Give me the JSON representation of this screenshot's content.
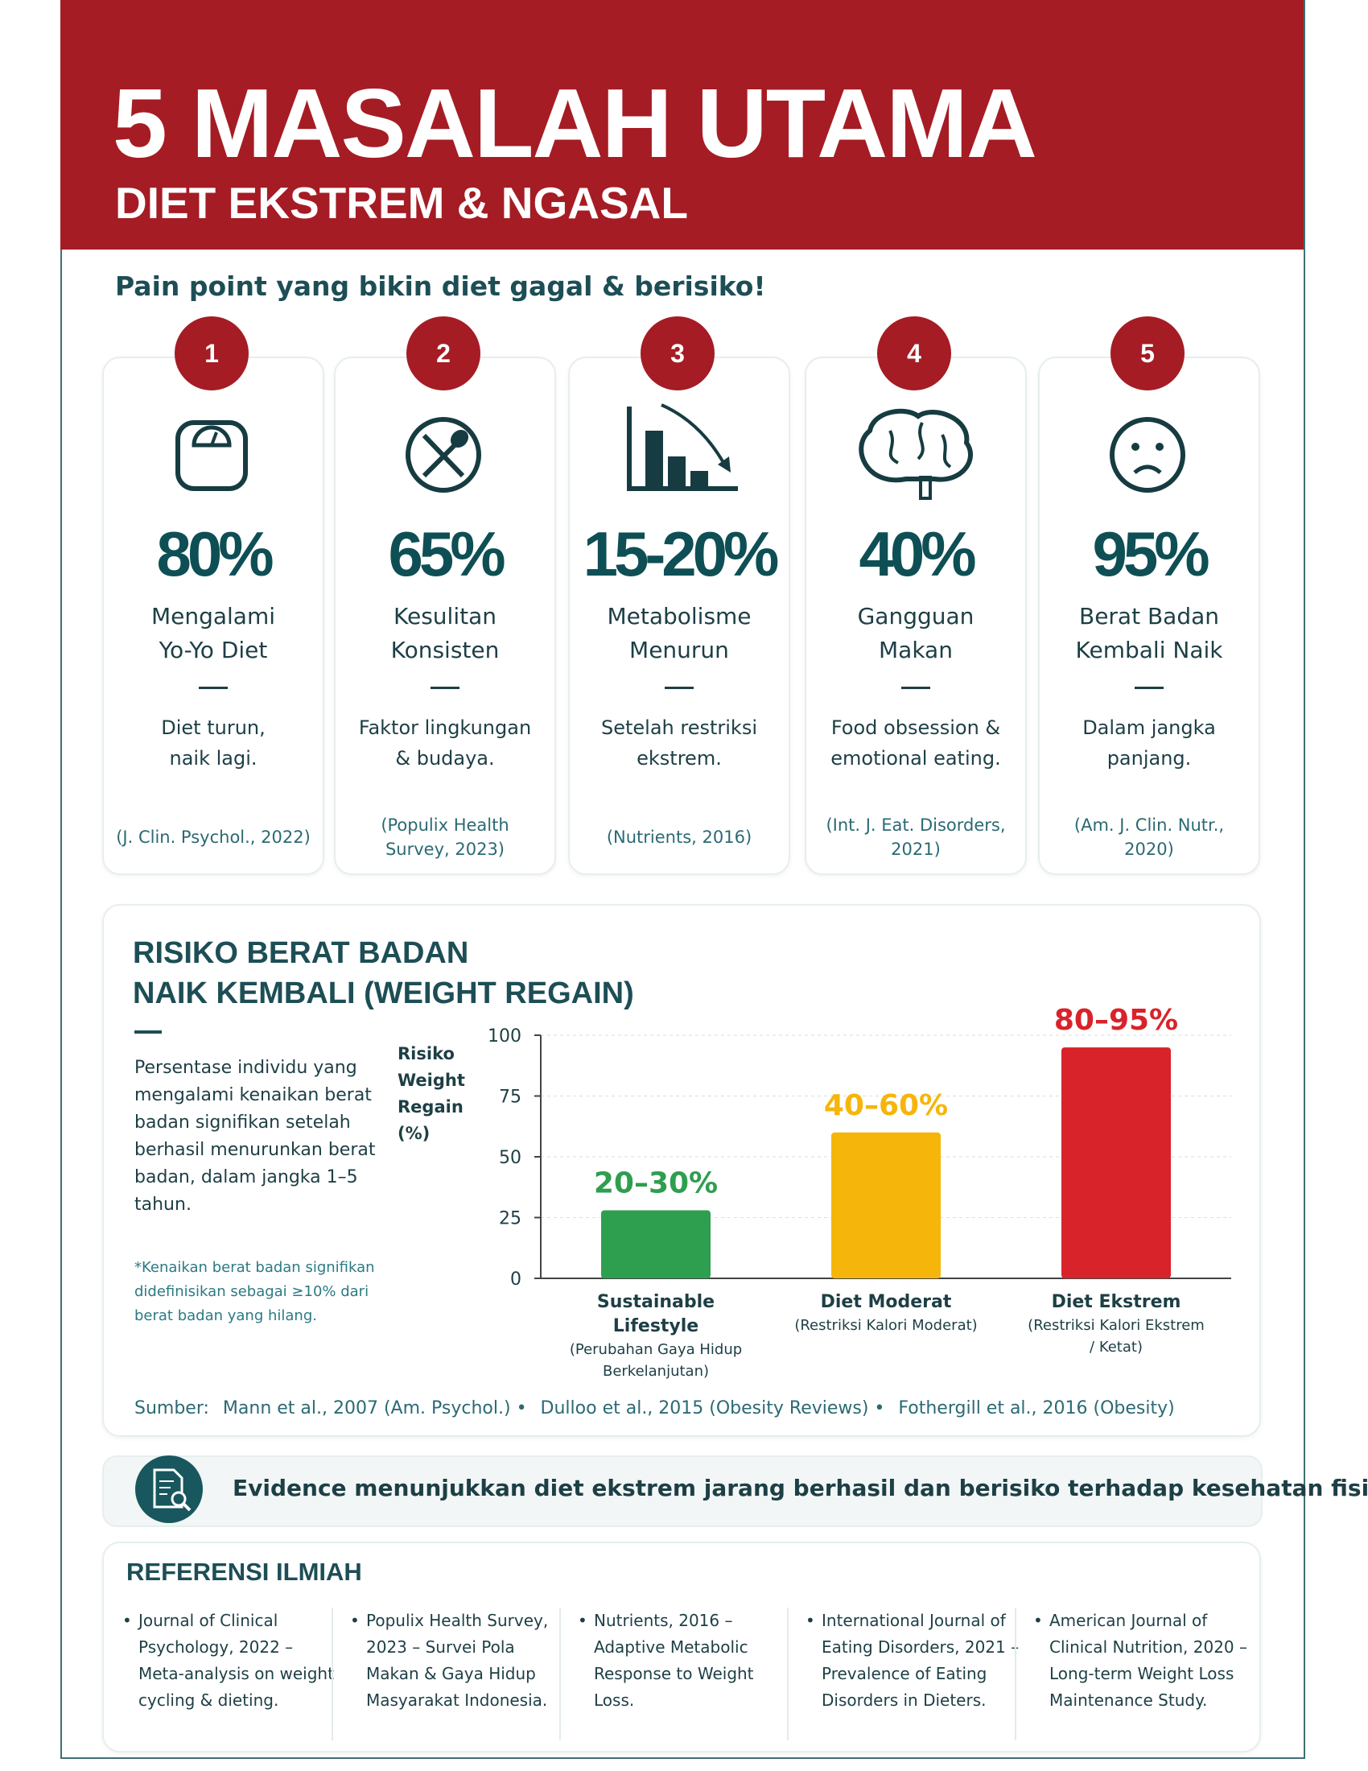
{
  "header": {
    "title": "5 MASALAH UTAMA",
    "subtitle": "DIET EKSTREM & NGASAL"
  },
  "tagline": "Pain point yang bikin diet gagal & berisiko!",
  "cards": [
    {
      "number": "1",
      "stat": "80%",
      "label": [
        "Mengalami",
        "Yo-Yo Diet"
      ],
      "desc": [
        "Diet turun,",
        "naik lagi."
      ],
      "source": [
        "(J. Clin. Psychol., 2022)"
      ]
    },
    {
      "number": "2",
      "stat": "65%",
      "label": [
        "Kesulitan",
        "Konsisten"
      ],
      "desc": [
        "Faktor lingkungan",
        "& budaya."
      ],
      "source": [
        "(Populix Health",
        "Survey, 2023)"
      ]
    },
    {
      "number": "3",
      "stat": "15-20%",
      "label": [
        "Metabolisme",
        "Menurun"
      ],
      "desc": [
        "Setelah restriksi",
        "ekstrem."
      ],
      "source": [
        "(Nutrients, 2016)"
      ]
    },
    {
      "number": "4",
      "stat": "40%",
      "label": [
        "Gangguan",
        "Makan"
      ],
      "desc": [
        "Food obsession &",
        "emotional eating."
      ],
      "source": [
        "(Int. J. Eat. Disorders,",
        "2021)"
      ]
    },
    {
      "number": "5",
      "stat": "95%",
      "label": [
        "Berat Badan",
        "Kembali Naik"
      ],
      "desc": [
        "Dalam jangka",
        "panjang."
      ],
      "source": [
        "(Am. J. Clin. Nutr.,",
        "2020)"
      ]
    }
  ],
  "chart_data": {
    "type": "bar",
    "title": [
      "RISIKO BERAT BADAN",
      "NAIK KEMBALI (WEIGHT REGAIN)"
    ],
    "description": "Persentase individu yang mengalami kenaikan berat badan signifikan setelah berhasil menurunkan berat badan, dalam jangka 1–5 tahun.",
    "note": "*Kenaikan berat badan signifikan didefinisikan sebagai ≥10% dari berat badan yang hilang.",
    "y_label": [
      "Risiko",
      "Weight",
      "Regain",
      "(%)"
    ],
    "categories": [
      "Sustainable Lifestyle",
      "Diet Moderat",
      "Diet Ekstrem"
    ],
    "category_notes": [
      "(Perubahan Gaya Hidup Berkelanjutan)",
      "(Restriksi Kalori Moderat)",
      "(Restriksi Kalori Ekstrem / Ketat)"
    ],
    "values": [
      28,
      60,
      95
    ],
    "value_labels": [
      "20–30%",
      "40–60%",
      "80–95%"
    ],
    "colors": [
      "#2e9e4f",
      "#f5b50a",
      "#d9232a"
    ],
    "ylim": [
      0,
      100
    ],
    "yticks": [
      0,
      25,
      50,
      75,
      100
    ],
    "grid": true,
    "sources_label": "Sumber:",
    "sources": [
      "Mann et al., 2007 (Am. Psychol.)",
      "Dulloo et al., 2015 (Obesity Reviews)",
      "Fothergill et al., 2016 (Obesity)"
    ]
  },
  "evidence": "Evidence menunjukkan diet ekstrem jarang berhasil dan berisiko terhadap kesehatan fisik & mental.",
  "references": {
    "title": "REFERENSI ILMIAH",
    "items": [
      "Journal of Clinical Psychology, 2022 – Meta-analysis on weight cycling & dieting.",
      "Populix Health Survey, 2023 – Survei Pola Makan & Gaya Hidup Masyarakat Indonesia.",
      "Nutrients, 2016 – Adaptive Metabolic Response to Weight Loss.",
      "International Journal of Eating Disorders, 2021 – Prevalence of Eating Disorders in Dieters.",
      "American Journal of Clinical Nutrition, 2020 – Long-term Weight Loss Maintenance Study."
    ]
  }
}
